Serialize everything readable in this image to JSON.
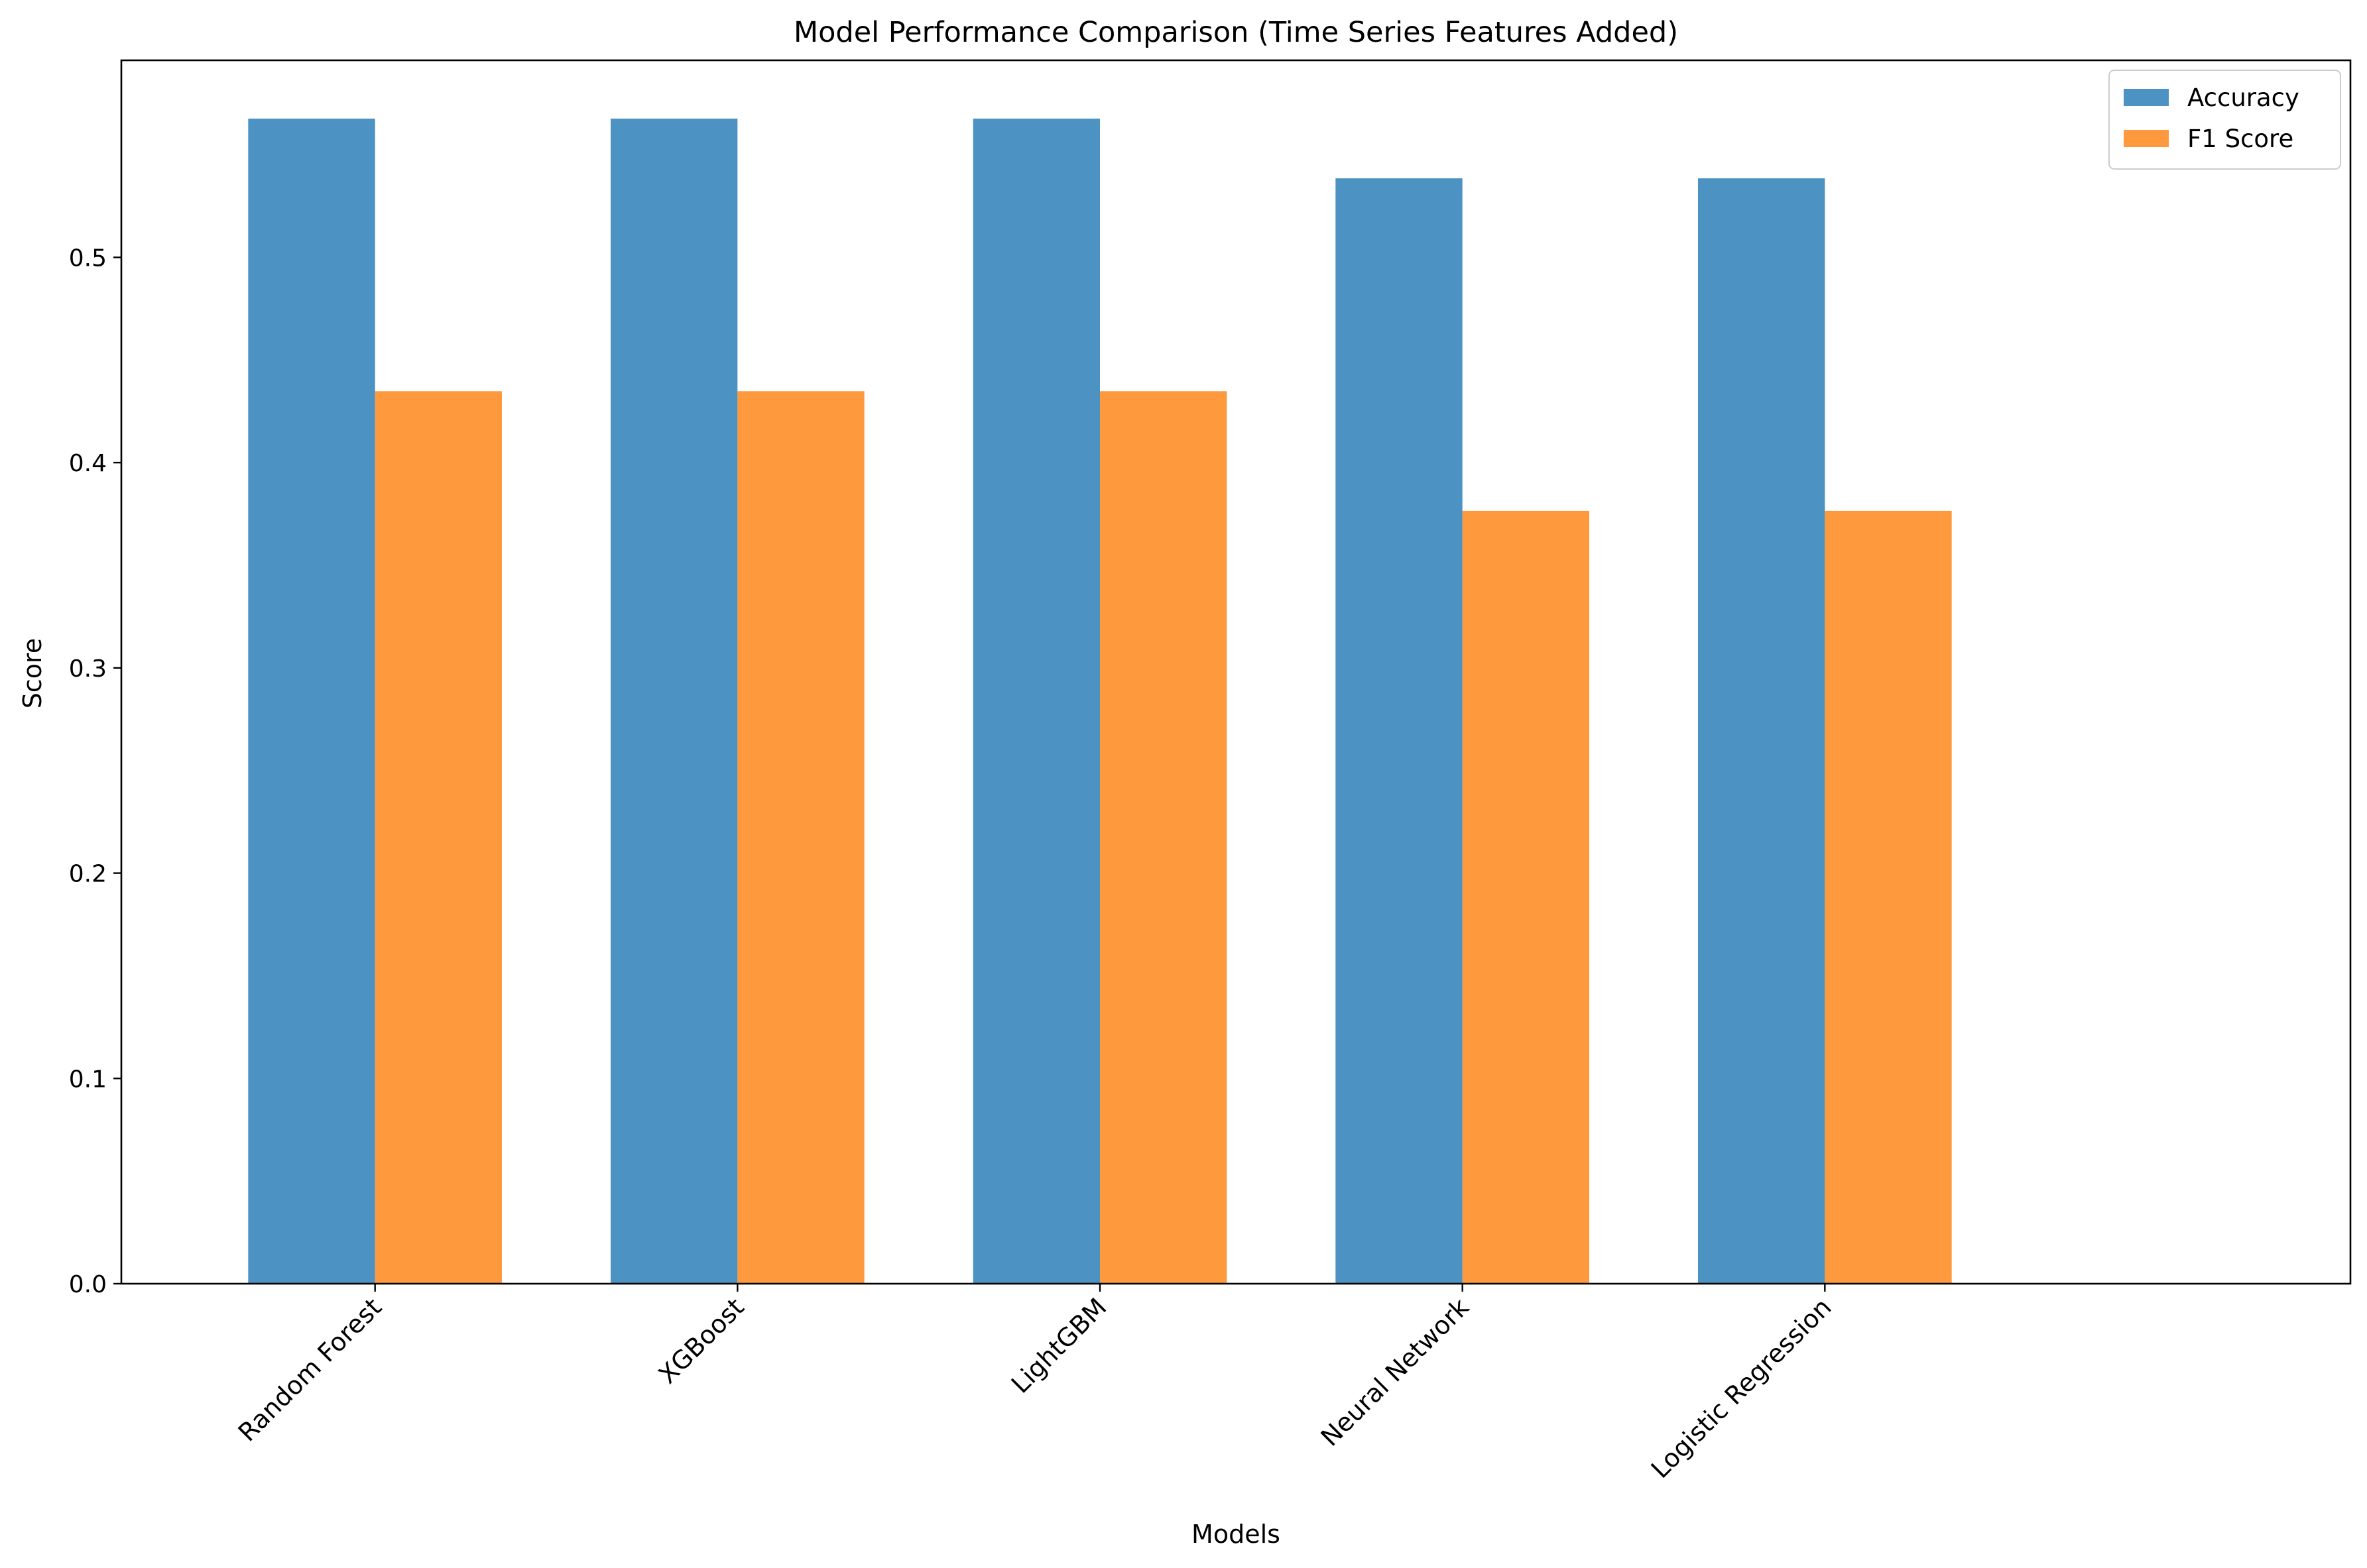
{
  "chart_data": {
    "type": "bar",
    "title": "Model Performance Comparison (Time Series Features Added)",
    "xlabel": "Models",
    "ylabel": "Score",
    "categories": [
      "Random Forest",
      "XGBoost",
      "LightGBM",
      "Neural Network",
      "Logistic Regression"
    ],
    "series": [
      {
        "name": "Accuracy",
        "color": "#1f77b4",
        "values": [
          0.5676,
          0.5676,
          0.5676,
          0.5385,
          0.5385
        ]
      },
      {
        "name": "F1 Score",
        "color": "#ff7f0e",
        "values": [
          0.4348,
          0.4348,
          0.4348,
          0.3765,
          0.3765
        ]
      }
    ],
    "bar_opacity": 0.8,
    "ylim": [
      0,
      0.596
    ],
    "yticks": [
      0.0,
      0.1,
      0.2,
      0.3,
      0.4,
      0.5
    ],
    "ytick_labels": [
      "0.0",
      "0.1",
      "0.2",
      "0.3",
      "0.4",
      "0.5"
    ],
    "xtick_rotation_deg": 45,
    "legend_position": "top-right",
    "grid": false
  }
}
